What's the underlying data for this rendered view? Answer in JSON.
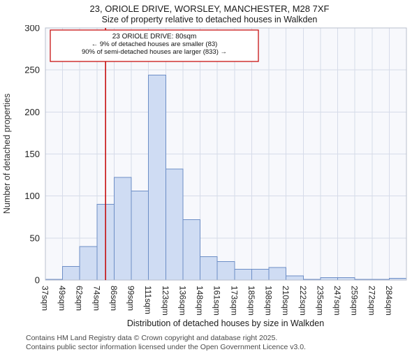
{
  "chart_data": {
    "type": "bar",
    "title": "23, ORIOLE DRIVE, WORSLEY, MANCHESTER, M28 7XF",
    "subtitle": "Size of property relative to detached houses in Walkden",
    "categories": [
      "37sqm",
      "49sqm",
      "62sqm",
      "74sqm",
      "86sqm",
      "99sqm",
      "111sqm",
      "123sqm",
      "136sqm",
      "148sqm",
      "161sqm",
      "173sqm",
      "185sqm",
      "198sqm",
      "210sqm",
      "222sqm",
      "235sqm",
      "247sqm",
      "259sqm",
      "272sqm",
      "284sqm"
    ],
    "values": [
      1,
      16,
      40,
      90,
      122,
      106,
      244,
      132,
      72,
      28,
      22,
      13,
      13,
      15,
      5,
      1,
      3,
      3,
      1,
      1,
      2
    ],
    "xlabel": "Distribution of detached houses by size in Walkden",
    "ylabel": "Number of detached properties",
    "ylim": [
      0,
      300
    ],
    "yticks": [
      0,
      50,
      100,
      150,
      200,
      250,
      300
    ],
    "grid": true,
    "legend": "none",
    "colors": {
      "bar_fill": "#cfdcf3",
      "bar_stroke": "#6d8ec6",
      "grid": "#d6dbe9",
      "plot_bg": "#f7f8fc",
      "plot_border": "#b9bfcc",
      "accent_red": "#c40000",
      "tick_text": "#222222"
    },
    "marker": {
      "value_sqm": 80
    },
    "annotation": {
      "line1": "23 ORIOLE DRIVE: 80sqm",
      "line2": "← 9% of detached houses are smaller (83)",
      "line3": "90% of semi-detached houses are larger (833) →"
    }
  },
  "footer": {
    "line1": "Contains HM Land Registry data © Crown copyright and database right 2025.",
    "line2": "Contains public sector information licensed under the Open Government Licence v3.0."
  }
}
